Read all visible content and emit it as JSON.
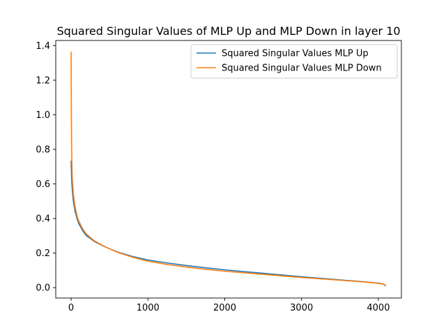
{
  "chart_data": {
    "type": "line",
    "title": "Squared Singular Values of MLP Up and MLP Down in layer 10",
    "xlabel": "",
    "ylabel": "",
    "xlim": [
      -200,
      4300
    ],
    "ylim": [
      -0.06,
      1.43
    ],
    "xticks": [
      0,
      1000,
      2000,
      3000,
      4000
    ],
    "yticks": [
      0.0,
      0.2,
      0.4,
      0.6,
      0.8,
      1.0,
      1.2,
      1.4
    ],
    "xtick_labels": [
      "0",
      "1000",
      "2000",
      "3000",
      "4000"
    ],
    "ytick_labels": [
      "0.0",
      "0.2",
      "0.4",
      "0.6",
      "0.8",
      "1.0",
      "1.2",
      "1.4"
    ],
    "grid": false,
    "legend_position": "upper right",
    "series": [
      {
        "name": "Squared Singular Values MLP Up",
        "color": "#1f77b4",
        "points": [
          [
            0,
            0.735
          ],
          [
            5,
            0.65
          ],
          [
            10,
            0.6
          ],
          [
            20,
            0.54
          ],
          [
            30,
            0.5
          ],
          [
            50,
            0.445
          ],
          [
            80,
            0.395
          ],
          [
            100,
            0.37
          ],
          [
            150,
            0.33
          ],
          [
            200,
            0.3
          ],
          [
            250,
            0.285
          ],
          [
            300,
            0.268
          ],
          [
            400,
            0.245
          ],
          [
            500,
            0.225
          ],
          [
            600,
            0.207
          ],
          [
            800,
            0.18
          ],
          [
            1000,
            0.16
          ],
          [
            1250,
            0.143
          ],
          [
            1500,
            0.128
          ],
          [
            1750,
            0.115
          ],
          [
            2000,
            0.103
          ],
          [
            2250,
            0.093
          ],
          [
            2500,
            0.083
          ],
          [
            2750,
            0.073
          ],
          [
            3000,
            0.063
          ],
          [
            3250,
            0.054
          ],
          [
            3500,
            0.045
          ],
          [
            3750,
            0.036
          ],
          [
            3900,
            0.03
          ],
          [
            4000,
            0.026
          ],
          [
            4050,
            0.022
          ],
          [
            4080,
            0.018
          ],
          [
            4096,
            0.008
          ]
        ]
      },
      {
        "name": "Squared Singular Values MLP Down",
        "color": "#ff7f0e",
        "points": [
          [
            0,
            1.365
          ],
          [
            2,
            1.2
          ],
          [
            4,
            1.0
          ],
          [
            6,
            0.85
          ],
          [
            10,
            0.72
          ],
          [
            15,
            0.64
          ],
          [
            20,
            0.6
          ],
          [
            30,
            0.54
          ],
          [
            50,
            0.47
          ],
          [
            80,
            0.41
          ],
          [
            100,
            0.385
          ],
          [
            150,
            0.34
          ],
          [
            200,
            0.31
          ],
          [
            250,
            0.29
          ],
          [
            300,
            0.272
          ],
          [
            400,
            0.247
          ],
          [
            500,
            0.225
          ],
          [
            600,
            0.205
          ],
          [
            800,
            0.176
          ],
          [
            1000,
            0.153
          ],
          [
            1250,
            0.134
          ],
          [
            1500,
            0.119
          ],
          [
            1750,
            0.106
          ],
          [
            2000,
            0.095
          ],
          [
            2250,
            0.086
          ],
          [
            2500,
            0.077
          ],
          [
            2750,
            0.068
          ],
          [
            3000,
            0.059
          ],
          [
            3250,
            0.051
          ],
          [
            3500,
            0.043
          ],
          [
            3750,
            0.035
          ],
          [
            3900,
            0.029
          ],
          [
            4000,
            0.025
          ],
          [
            4050,
            0.021
          ],
          [
            4080,
            0.018
          ],
          [
            4096,
            0.012
          ]
        ]
      }
    ]
  }
}
